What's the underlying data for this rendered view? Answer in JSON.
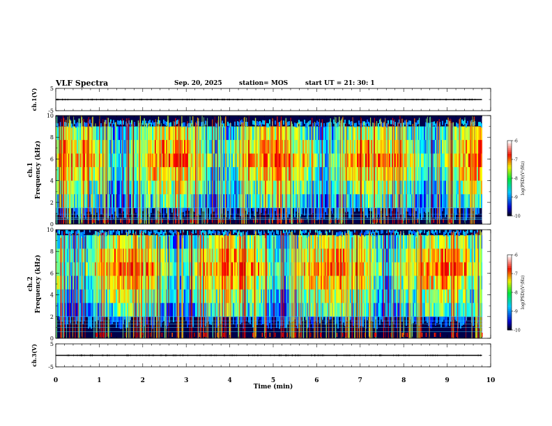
{
  "header": {
    "title": "VLF Spectra",
    "date": "Sep. 20, 2025",
    "station": "station= MOS",
    "start": "start  UT =   21: 30: 1"
  },
  "chart_data": [
    {
      "type": "line",
      "panel": "ch1-waveform",
      "ylabel": "ch.1(V)",
      "ylim": [
        -5,
        5
      ],
      "yticks": [
        "5",
        "-5"
      ],
      "xlim": [
        0,
        10
      ],
      "series": [
        {
          "x": [
            0,
            9.8
          ],
          "values": [
            0,
            0
          ]
        }
      ]
    },
    {
      "type": "heatmap",
      "panel": "ch1-spectrogram",
      "ylabel_line1": "ch.1",
      "ylabel_line2": "Frequency (kHz)",
      "ylim": [
        0,
        10
      ],
      "yticks": [
        "0",
        "2",
        "4",
        "6",
        "8",
        "10"
      ],
      "xlim": [
        0,
        10
      ],
      "data_end_min": 9.8,
      "emission_band_khz": [
        1.5,
        9
      ],
      "colorbar": {
        "label": "log(PSD)(V²/Hz)",
        "range": [
          -10,
          -6
        ],
        "ticks": [
          "-6",
          "-7",
          "-8",
          "-9",
          "-10"
        ]
      }
    },
    {
      "type": "heatmap",
      "panel": "ch2-spectrogram",
      "ylabel_line1": "ch.2",
      "ylabel_line2": "Frequency (kHz)",
      "ylim": [
        0,
        10
      ],
      "yticks": [
        "0",
        "2",
        "4",
        "6",
        "8",
        "10"
      ],
      "xlim": [
        0,
        10
      ],
      "data_end_min": 9.8,
      "emission_band_khz": [
        2,
        9.5
      ],
      "colorbar": {
        "label": "log(PSD)(V²/Hz)",
        "range": [
          -10,
          -6
        ],
        "ticks": [
          "-6",
          "-7",
          "-8",
          "-9",
          "-10"
        ]
      }
    },
    {
      "type": "line",
      "panel": "ch3-waveform",
      "ylabel": "ch.3(V)",
      "ylim": [
        -5,
        5
      ],
      "yticks": [
        "5",
        "-5"
      ],
      "xlim": [
        0,
        10
      ],
      "xlabel": "Time  (min)",
      "xticks": [
        "0",
        "1",
        "2",
        "3",
        "4",
        "5",
        "6",
        "7",
        "8",
        "9",
        "10"
      ],
      "series": [
        {
          "x": [
            0,
            9.8
          ],
          "values": [
            0,
            0
          ]
        }
      ]
    }
  ]
}
